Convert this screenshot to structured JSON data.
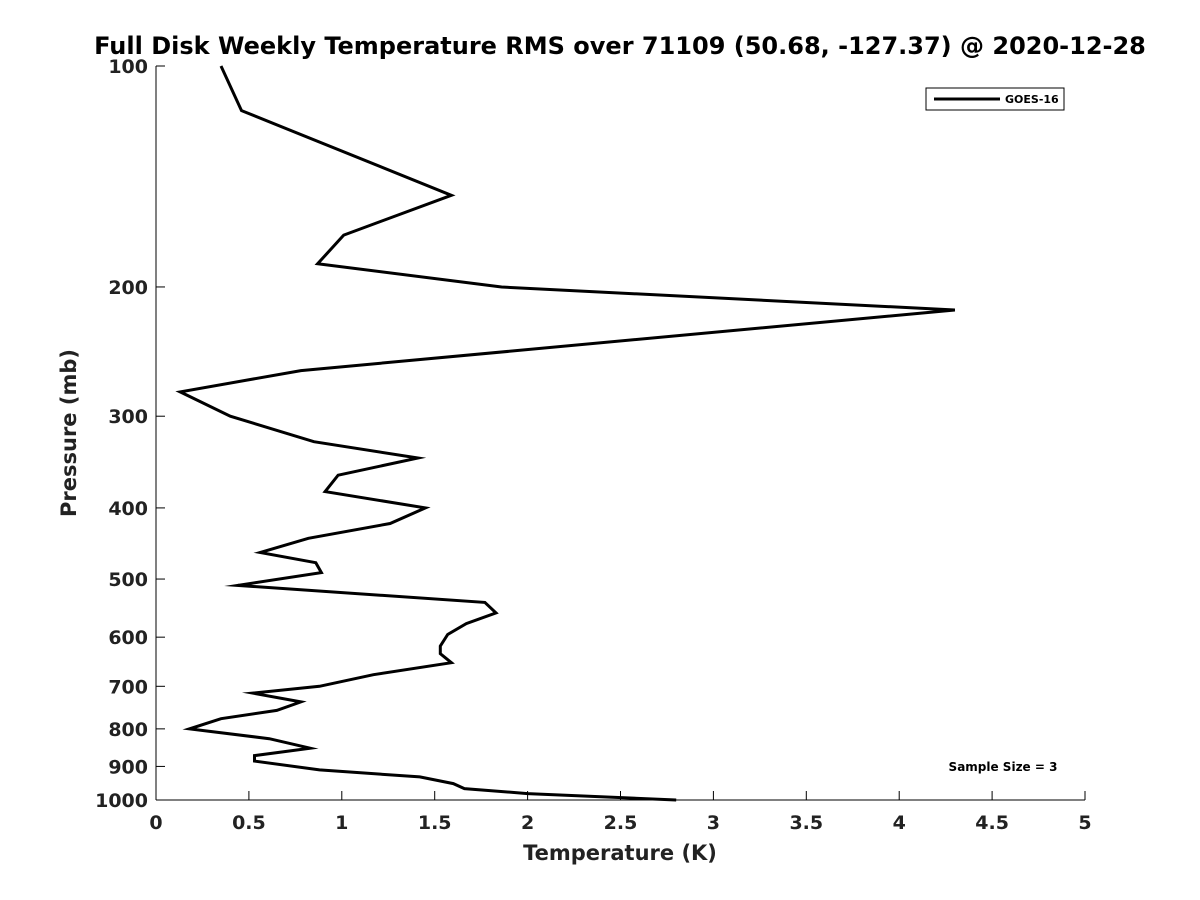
{
  "chart_data": {
    "type": "line",
    "title": "Full Disk Weekly Temperature RMS over 71109 (50.68, -127.37) @ 2020-12-28",
    "xlabel": "Temperature (K)",
    "ylabel": "Pressure (mb)",
    "xlim": [
      0,
      5
    ],
    "ylim": [
      1000,
      100
    ],
    "yscale": "log",
    "x_ticks": [
      0,
      0.5,
      1,
      1.5,
      2,
      2.5,
      3,
      3.5,
      4,
      4.5,
      5
    ],
    "x_tick_labels": [
      "0",
      "0.5",
      "1",
      "1.5",
      "2",
      "2.5",
      "3",
      "3.5",
      "4",
      "4.5",
      "5"
    ],
    "y_ticks": [
      100,
      200,
      300,
      400,
      500,
      600,
      700,
      800,
      900,
      1000
    ],
    "y_tick_labels": [
      "100",
      "200",
      "300",
      "400",
      "500",
      "600",
      "700",
      "800",
      "900",
      "1000"
    ],
    "grid": false,
    "legend_position": "top-right",
    "annotation": "Sample Size = 3",
    "series": [
      {
        "name": "GOES-16",
        "color": "#000000",
        "points": [
          [
            0.35,
            100
          ],
          [
            0.46,
            115
          ],
          [
            1.59,
            150
          ],
          [
            1.01,
            170
          ],
          [
            0.87,
            186
          ],
          [
            1.86,
            200
          ],
          [
            4.3,
            215
          ],
          [
            0.78,
            260
          ],
          [
            0.13,
            278
          ],
          [
            0.4,
            300
          ],
          [
            0.85,
            325
          ],
          [
            1.41,
            342
          ],
          [
            0.98,
            361
          ],
          [
            0.91,
            380
          ],
          [
            1.45,
            400
          ],
          [
            1.26,
            420
          ],
          [
            0.82,
            440
          ],
          [
            0.56,
            460
          ],
          [
            0.86,
            475
          ],
          [
            0.89,
            490
          ],
          [
            0.44,
            510
          ],
          [
            1.77,
            538
          ],
          [
            1.83,
            556
          ],
          [
            1.67,
            575
          ],
          [
            1.57,
            595
          ],
          [
            1.53,
            617
          ],
          [
            1.53,
            632
          ],
          [
            1.59,
            650
          ],
          [
            1.17,
            675
          ],
          [
            0.88,
            700
          ],
          [
            0.52,
            715
          ],
          [
            0.78,
            735
          ],
          [
            0.65,
            755
          ],
          [
            0.35,
            775
          ],
          [
            0.18,
            800
          ],
          [
            0.61,
            825
          ],
          [
            0.83,
            850
          ],
          [
            0.53,
            870
          ],
          [
            0.53,
            885
          ],
          [
            0.88,
            910
          ],
          [
            1.42,
            930
          ],
          [
            1.6,
            950
          ],
          [
            1.66,
            965
          ],
          [
            2.0,
            980
          ],
          [
            2.8,
            1000
          ]
        ]
      }
    ]
  }
}
